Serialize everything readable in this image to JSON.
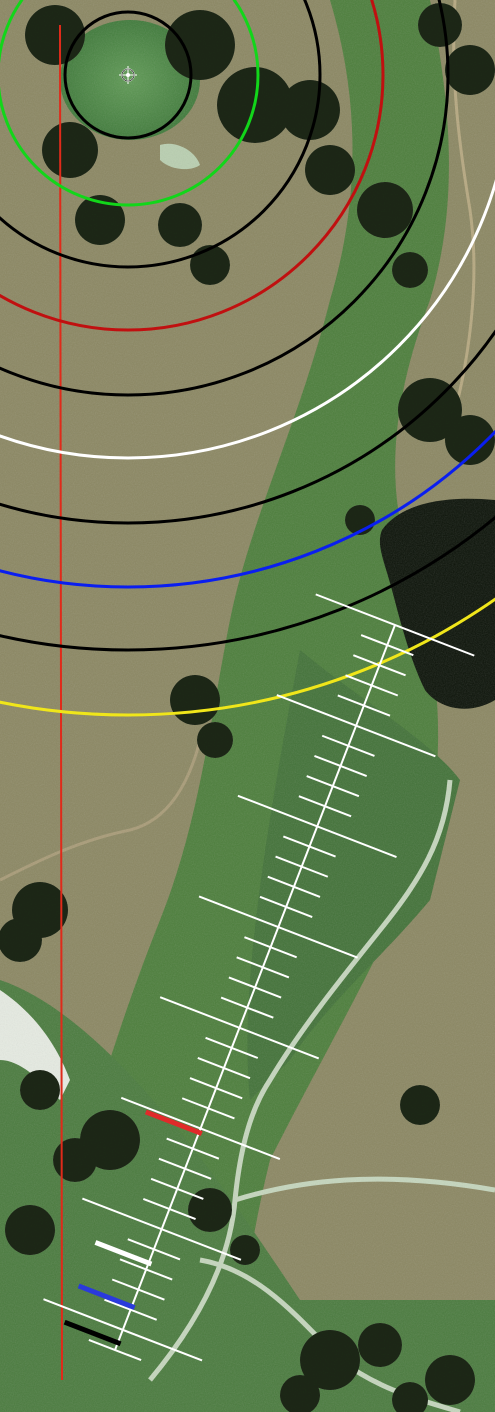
{
  "view": {
    "type": "aerial-golf-hole-yardage-map",
    "background_colors": {
      "rough_tan": "#8d8a63",
      "fairway_green": "#4d7f3c",
      "dark_green": "#2f5a2a",
      "tree_dark": "#1f2a18",
      "water": "#0b1208",
      "cart_path": "#c9d9c2",
      "bunker_sand": "#e8ece4"
    }
  },
  "target": {
    "icon": "crosshair-pin-icon"
  },
  "distance_rings": {
    "colors": [
      "#000000",
      "#12d61a",
      "#000000",
      "#c01010",
      "#000000",
      "#ffffff",
      "#000000",
      "#0a1ef0",
      "#000000",
      "#f0e61a"
    ]
  },
  "guide_line": {
    "color": "#e02a1a"
  },
  "yardage_ladder": {
    "line_color": "#ffffff",
    "marker_colors": [
      "#e02a2a",
      "#ffffff",
      "#2a3adc",
      "#000000"
    ]
  }
}
